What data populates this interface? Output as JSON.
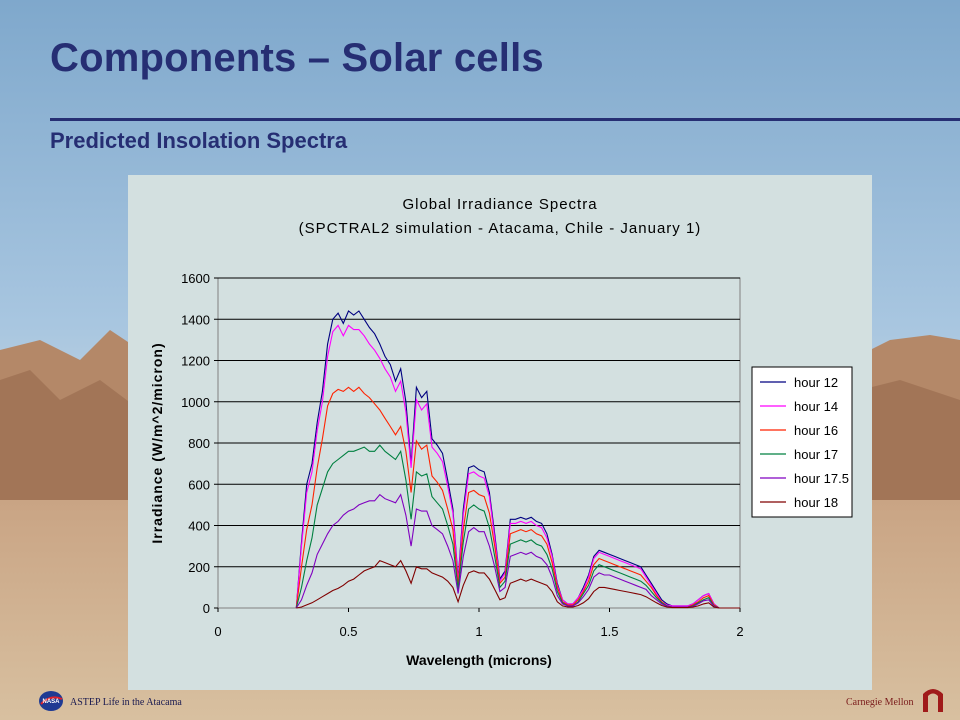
{
  "slide": {
    "title": "Components – Solar cells",
    "subtitle": "Predicted Insolation Spectra"
  },
  "footer": {
    "left": "ASTEP Life in the Atacama",
    "right": "Carnegie Mellon"
  },
  "colors": {
    "title": "#262e73",
    "plot_bg": "#d3e0e0"
  },
  "icons": [
    "nasa-logo",
    "carnegie-mellon-logo"
  ],
  "chart_data": {
    "type": "line",
    "title": "Global Irradiance Spectra",
    "subtitle": "(SPCTRAL2 simulation - Atacama, Chile - January 1)",
    "xlabel": "Wavelength (microns)",
    "ylabel": "Irradiance (W/m^2/micron)",
    "xlim": [
      0,
      2
    ],
    "ylim": [
      0,
      1600
    ],
    "xticks": [
      0,
      0.5,
      1,
      1.5,
      2
    ],
    "xtick_labels": [
      "0",
      "0.5",
      "1",
      "1.5",
      "2"
    ],
    "yticks": [
      0,
      200,
      400,
      600,
      800,
      1000,
      1200,
      1400,
      1600
    ],
    "ytick_labels": [
      "0",
      "200",
      "400",
      "600",
      "800",
      "1000",
      "1200",
      "1400",
      "1600"
    ],
    "grid": "horizontal",
    "legend_position": "right",
    "x": [
      0.3,
      0.32,
      0.34,
      0.36,
      0.38,
      0.4,
      0.42,
      0.44,
      0.46,
      0.48,
      0.5,
      0.52,
      0.54,
      0.56,
      0.58,
      0.6,
      0.62,
      0.64,
      0.66,
      0.68,
      0.7,
      0.72,
      0.74,
      0.76,
      0.78,
      0.8,
      0.82,
      0.84,
      0.86,
      0.88,
      0.9,
      0.92,
      0.94,
      0.96,
      0.98,
      1.0,
      1.02,
      1.04,
      1.06,
      1.08,
      1.1,
      1.12,
      1.14,
      1.16,
      1.18,
      1.2,
      1.22,
      1.24,
      1.26,
      1.28,
      1.3,
      1.32,
      1.34,
      1.36,
      1.38,
      1.4,
      1.42,
      1.44,
      1.46,
      1.48,
      1.5,
      1.52,
      1.54,
      1.56,
      1.58,
      1.6,
      1.62,
      1.64,
      1.66,
      1.68,
      1.7,
      1.72,
      1.74,
      1.76,
      1.78,
      1.8,
      1.82,
      1.84,
      1.86,
      1.88,
      1.9,
      1.92,
      1.94,
      1.96,
      1.98,
      2.0
    ],
    "series": [
      {
        "name": "hour 12",
        "color": "#000080",
        "values": [
          0,
          320,
          600,
          700,
          900,
          1050,
          1280,
          1400,
          1430,
          1380,
          1440,
          1420,
          1440,
          1400,
          1360,
          1330,
          1280,
          1220,
          1180,
          1100,
          1160,
          1000,
          700,
          1070,
          1020,
          1050,
          820,
          790,
          750,
          620,
          480,
          140,
          480,
          680,
          690,
          670,
          660,
          560,
          360,
          140,
          180,
          430,
          430,
          440,
          430,
          440,
          420,
          410,
          360,
          260,
          120,
          40,
          20,
          20,
          50,
          100,
          160,
          250,
          280,
          270,
          260,
          250,
          240,
          230,
          220,
          210,
          200,
          160,
          120,
          80,
          40,
          20,
          10,
          10,
          10,
          10,
          20,
          40,
          60,
          70,
          20,
          0,
          0,
          0,
          0,
          0
        ]
      },
      {
        "name": "hour 14",
        "color": "#ff00ff",
        "values": [
          0,
          300,
          560,
          660,
          860,
          1000,
          1220,
          1340,
          1370,
          1320,
          1370,
          1350,
          1350,
          1320,
          1280,
          1250,
          1210,
          1160,
          1120,
          1050,
          1100,
          950,
          680,
          1010,
          960,
          990,
          780,
          750,
          710,
          590,
          460,
          130,
          450,
          650,
          660,
          640,
          630,
          540,
          340,
          130,
          170,
          410,
          410,
          420,
          410,
          420,
          400,
          390,
          340,
          250,
          110,
          40,
          20,
          20,
          50,
          90,
          150,
          240,
          270,
          260,
          250,
          240,
          230,
          220,
          210,
          200,
          190,
          150,
          110,
          70,
          30,
          15,
          10,
          10,
          10,
          10,
          20,
          40,
          60,
          70,
          20,
          0,
          0,
          0,
          0,
          0
        ]
      },
      {
        "name": "hour 16",
        "color": "#ff2200",
        "values": [
          0,
          200,
          380,
          500,
          680,
          820,
          980,
          1040,
          1060,
          1050,
          1070,
          1050,
          1070,
          1040,
          1020,
          990,
          960,
          920,
          880,
          840,
          880,
          760,
          560,
          810,
          770,
          790,
          640,
          610,
          570,
          480,
          380,
          110,
          380,
          560,
          570,
          550,
          540,
          460,
          300,
          120,
          150,
          360,
          370,
          380,
          370,
          380,
          360,
          350,
          310,
          220,
          100,
          30,
          15,
          15,
          40,
          80,
          130,
          210,
          240,
          230,
          220,
          210,
          200,
          190,
          180,
          170,
          160,
          130,
          100,
          60,
          30,
          10,
          5,
          5,
          5,
          5,
          15,
          30,
          50,
          60,
          15,
          0,
          0,
          0,
          0,
          0
        ]
      },
      {
        "name": "hour 17",
        "color": "#008040",
        "values": [
          0,
          100,
          230,
          340,
          500,
          580,
          660,
          700,
          720,
          740,
          760,
          760,
          770,
          780,
          760,
          760,
          790,
          760,
          740,
          720,
          760,
          620,
          430,
          660,
          640,
          650,
          540,
          510,
          480,
          400,
          310,
          90,
          320,
          480,
          500,
          480,
          470,
          390,
          250,
          100,
          130,
          310,
          320,
          330,
          320,
          330,
          310,
          300,
          260,
          190,
          80,
          25,
          10,
          10,
          30,
          70,
          110,
          180,
          210,
          200,
          190,
          180,
          170,
          160,
          150,
          140,
          130,
          110,
          80,
          50,
          25,
          10,
          5,
          5,
          5,
          5,
          10,
          25,
          40,
          50,
          10,
          0,
          0,
          0,
          0,
          0
        ]
      },
      {
        "name": "hour 17.5",
        "color": "#8000c0",
        "values": [
          0,
          40,
          110,
          170,
          260,
          310,
          360,
          400,
          420,
          450,
          470,
          480,
          500,
          510,
          520,
          520,
          550,
          530,
          520,
          510,
          550,
          450,
          300,
          480,
          470,
          470,
          400,
          380,
          360,
          300,
          230,
          70,
          250,
          370,
          390,
          370,
          370,
          300,
          200,
          80,
          100,
          250,
          260,
          270,
          260,
          270,
          250,
          240,
          210,
          150,
          60,
          20,
          10,
          10,
          25,
          55,
          90,
          150,
          170,
          160,
          160,
          150,
          140,
          130,
          120,
          110,
          100,
          90,
          60,
          40,
          20,
          8,
          4,
          4,
          4,
          4,
          8,
          20,
          35,
          40,
          8,
          0,
          0,
          0,
          0,
          0
        ]
      },
      {
        "name": "hour 18",
        "color": "#800000",
        "values": [
          0,
          5,
          15,
          25,
          40,
          55,
          70,
          85,
          95,
          110,
          130,
          140,
          160,
          180,
          190,
          200,
          230,
          220,
          210,
          200,
          230,
          180,
          120,
          200,
          190,
          190,
          170,
          160,
          150,
          130,
          100,
          30,
          110,
          170,
          180,
          170,
          170,
          140,
          90,
          40,
          50,
          120,
          130,
          140,
          130,
          140,
          130,
          120,
          110,
          80,
          30,
          10,
          5,
          5,
          12,
          25,
          45,
          80,
          100,
          100,
          95,
          90,
          85,
          80,
          75,
          70,
          65,
          55,
          40,
          25,
          12,
          5,
          2,
          2,
          2,
          2,
          5,
          10,
          20,
          25,
          5,
          0,
          0,
          0,
          0,
          0
        ]
      }
    ]
  }
}
